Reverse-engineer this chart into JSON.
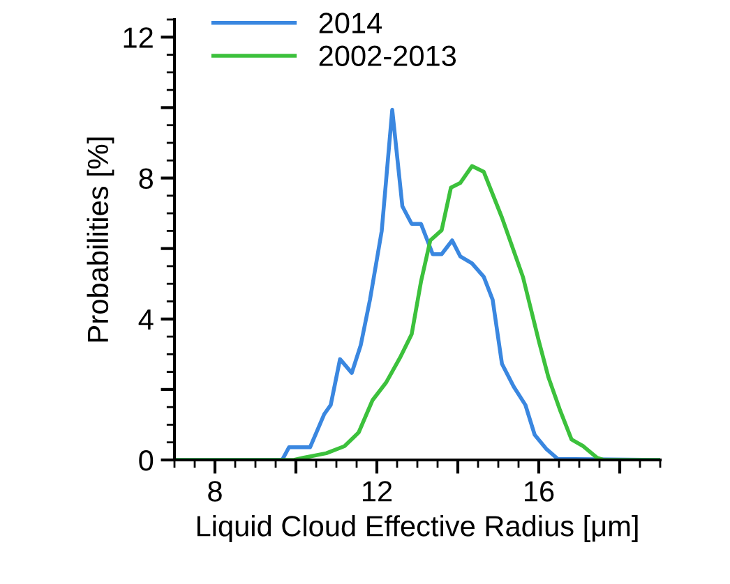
{
  "chart_data": {
    "type": "line",
    "xlabel": "Liquid Cloud Effective Radius [μm]",
    "ylabel": "Probabilities [%]",
    "xlim": [
      7,
      19
    ],
    "ylim": [
      0,
      12.5
    ],
    "xticks": [
      {
        "value": 8,
        "label": "8"
      },
      {
        "value": 10,
        "label": null
      },
      {
        "value": 12,
        "label": "12"
      },
      {
        "value": 14,
        "label": null
      },
      {
        "value": 16,
        "label": "16"
      },
      {
        "value": 18,
        "label": null
      }
    ],
    "yticks": [
      {
        "value": 0,
        "label": "0"
      },
      {
        "value": 2,
        "label": null
      },
      {
        "value": 4,
        "label": "4"
      },
      {
        "value": 6,
        "label": null
      },
      {
        "value": 8,
        "label": "8"
      },
      {
        "value": 10,
        "label": null
      },
      {
        "value": 12,
        "label": "12"
      }
    ],
    "grid": false,
    "legend": "top left",
    "marker": "none",
    "line_style": "solid",
    "series": [
      {
        "name": "2014",
        "color": "#3a87e0",
        "x": [
          7,
          9.66,
          9.83,
          10.35,
          10.7,
          10.86,
          11.09,
          11.38,
          11.6,
          11.83,
          12.12,
          12.38,
          12.63,
          12.86,
          13.09,
          13.38,
          13.6,
          13.86,
          14.06,
          14.35,
          14.64,
          14.86,
          15.09,
          15.38,
          15.67,
          15.9,
          16.18,
          16.47,
          19
        ],
        "values": [
          0,
          0,
          0.36,
          0.36,
          1.3,
          1.56,
          2.86,
          2.47,
          3.25,
          4.55,
          6.5,
          9.94,
          7.2,
          6.7,
          6.7,
          5.84,
          5.84,
          6.23,
          5.78,
          5.58,
          5.2,
          4.55,
          2.73,
          2.08,
          1.56,
          0.71,
          0.32,
          0.03,
          0
        ]
      },
      {
        "name": "2002-2013",
        "color": "#3cc13c",
        "x": [
          7,
          9.95,
          10.17,
          10.75,
          11.2,
          11.55,
          11.89,
          12.23,
          12.58,
          12.86,
          13.09,
          13.32,
          13.6,
          13.83,
          14.06,
          14.35,
          14.64,
          15.09,
          15.61,
          16.0,
          16.24,
          16.52,
          16.81,
          17.1,
          17.44,
          17.6,
          19
        ],
        "values": [
          0,
          0,
          0.06,
          0.19,
          0.39,
          0.78,
          1.69,
          2.2,
          2.92,
          3.57,
          5.06,
          6.23,
          6.52,
          7.73,
          7.86,
          8.34,
          8.18,
          6.88,
          5.19,
          3.38,
          2.34,
          1.43,
          0.58,
          0.39,
          0.06,
          0,
          0
        ]
      }
    ]
  }
}
